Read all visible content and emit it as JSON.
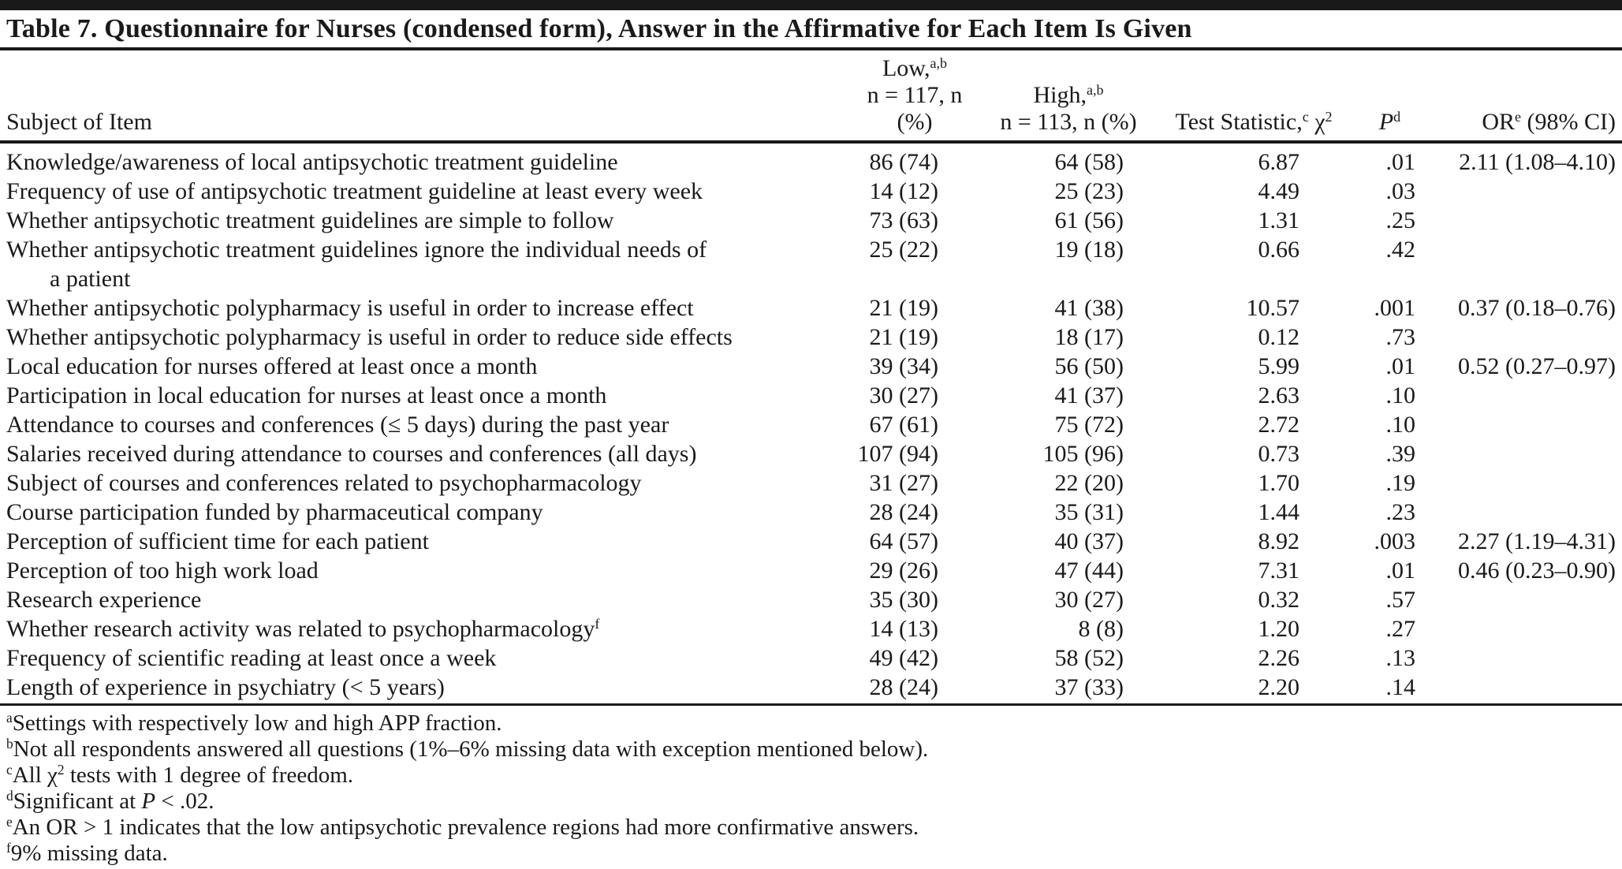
{
  "colors": {
    "background": "#ffffff",
    "text": "#1a1a1a",
    "rule": "#1a1a1a"
  },
  "table": {
    "title": "Table 7. Questionnaire for Nurses (condensed form), Answer in the Affirmative for Each Item Is Given",
    "header": {
      "subject": "Subject of Item",
      "low_top": "Low,",
      "low_top_sup": "a,b",
      "low_bottom": "n = 117, n (%)",
      "high_top": "High,",
      "high_top_sup": "a,b",
      "high_bottom": "n = 113, n (%)",
      "test": "Test Statistic,",
      "test_sup": "c",
      "test_chi": "χ",
      "test_chi_sup": "2",
      "p": "P",
      "p_sup": "d",
      "or": "OR",
      "or_sup": "e",
      "or_ci": "(98% CI)"
    },
    "rows": [
      {
        "subject": "Knowledge/awareness of local antipsychotic treatment guideline",
        "low": "86 (74)",
        "high": "64 (58)",
        "test": "6.87",
        "p": ".01",
        "or": "2.11 (1.08–4.10)"
      },
      {
        "subject": "Frequency of use of antipsychotic treatment guideline at least every week",
        "low": "14 (12)",
        "high": "25 (23)",
        "test": "4.49",
        "p": ".03"
      },
      {
        "subject": "Whether antipsychotic treatment guidelines are simple to follow",
        "low": "73 (63)",
        "high": "61 (56)",
        "test": "1.31",
        "p": ".25"
      },
      {
        "subject": "Whether antipsychotic treatment guidelines ignore the individual needs of",
        "subject2": "a patient",
        "low": "25 (22)",
        "high": "19 (18)",
        "test": "0.66",
        "p": ".42"
      },
      {
        "subject": "Whether antipsychotic polypharmacy is useful in order to increase effect",
        "low": "21 (19)",
        "high": "41 (38)",
        "test": "10.57",
        "p": ".001",
        "or": "0.37 (0.18–0.76)"
      },
      {
        "subject": "Whether antipsychotic polypharmacy is useful in order to reduce side effects",
        "low": "21 (19)",
        "high": "18 (17)",
        "test": "0.12",
        "p": ".73"
      },
      {
        "subject": "Local education for nurses offered at least once a month",
        "low": "39 (34)",
        "high": "56 (50)",
        "test": "5.99",
        "p": ".01",
        "or": "0.52 (0.27–0.97)"
      },
      {
        "subject": "Participation in local education for nurses at least once a month",
        "low": "30 (27)",
        "high": "41 (37)",
        "test": "2.63",
        "p": ".10"
      },
      {
        "subject": "Attendance to courses and conferences (≤ 5 days) during the past year",
        "low": "67 (61)",
        "high": "75 (72)",
        "test": "2.72",
        "p": ".10"
      },
      {
        "subject": "Salaries received during attendance to courses and conferences (all days)",
        "low": "107 (94)",
        "high": "105 (96)",
        "test": "0.73",
        "p": ".39"
      },
      {
        "subject": "Subject of courses and conferences related to psychopharmacology",
        "low": "31 (27)",
        "high": "22 (20)",
        "test": "1.70",
        "p": ".19"
      },
      {
        "subject": "Course participation funded by pharmaceutical company",
        "low": "28 (24)",
        "high": "35 (31)",
        "test": "1.44",
        "p": ".23"
      },
      {
        "subject": "Perception of sufficient time for each patient",
        "low": "64 (57)",
        "high": "40 (37)",
        "test": "8.92",
        "p": ".003",
        "or": "2.27 (1.19–4.31)"
      },
      {
        "subject": "Perception of too high work load",
        "low": "29 (26)",
        "high": "47 (44)",
        "test": "7.31",
        "p": ".01",
        "or": "0.46 (0.23–0.90)"
      },
      {
        "subject": "Research experience",
        "low": "35 (30)",
        "high": "30 (27)",
        "test": "0.32",
        "p": ".57"
      },
      {
        "subject": "Whether research activity was related to psychopharmacology",
        "subject_sup": "f",
        "low": "14 (13)",
        "high": "8 (8)",
        "test": "1.20",
        "p": ".27"
      },
      {
        "subject": "Frequency of scientific reading at least once a week",
        "low": "49 (42)",
        "high": "58 (52)",
        "test": "2.26",
        "p": ".13"
      },
      {
        "subject": "Length of experience in psychiatry (< 5 years)",
        "low": "28 (24)",
        "high": "37 (33)",
        "test": "2.20",
        "p": ".14"
      }
    ],
    "footnotes": [
      {
        "sup": "a",
        "pre": "Settings with respectively low and high APP fraction."
      },
      {
        "sup": "b",
        "pre": "Not all respondents answered all questions (1%–6% missing data with exception mentioned below)."
      },
      {
        "sup": "c",
        "pre": "All χ",
        "sup2": "2",
        "post": " tests with 1 degree of freedom."
      },
      {
        "sup": "d",
        "pre": "Significant at ",
        "italic": "P",
        "post": " < .02."
      },
      {
        "sup": "e",
        "pre": "An OR > 1 indicates that the low antipsychotic prevalence regions had more confirmative answers."
      },
      {
        "sup": "f",
        "pre": "9% missing data."
      }
    ]
  }
}
